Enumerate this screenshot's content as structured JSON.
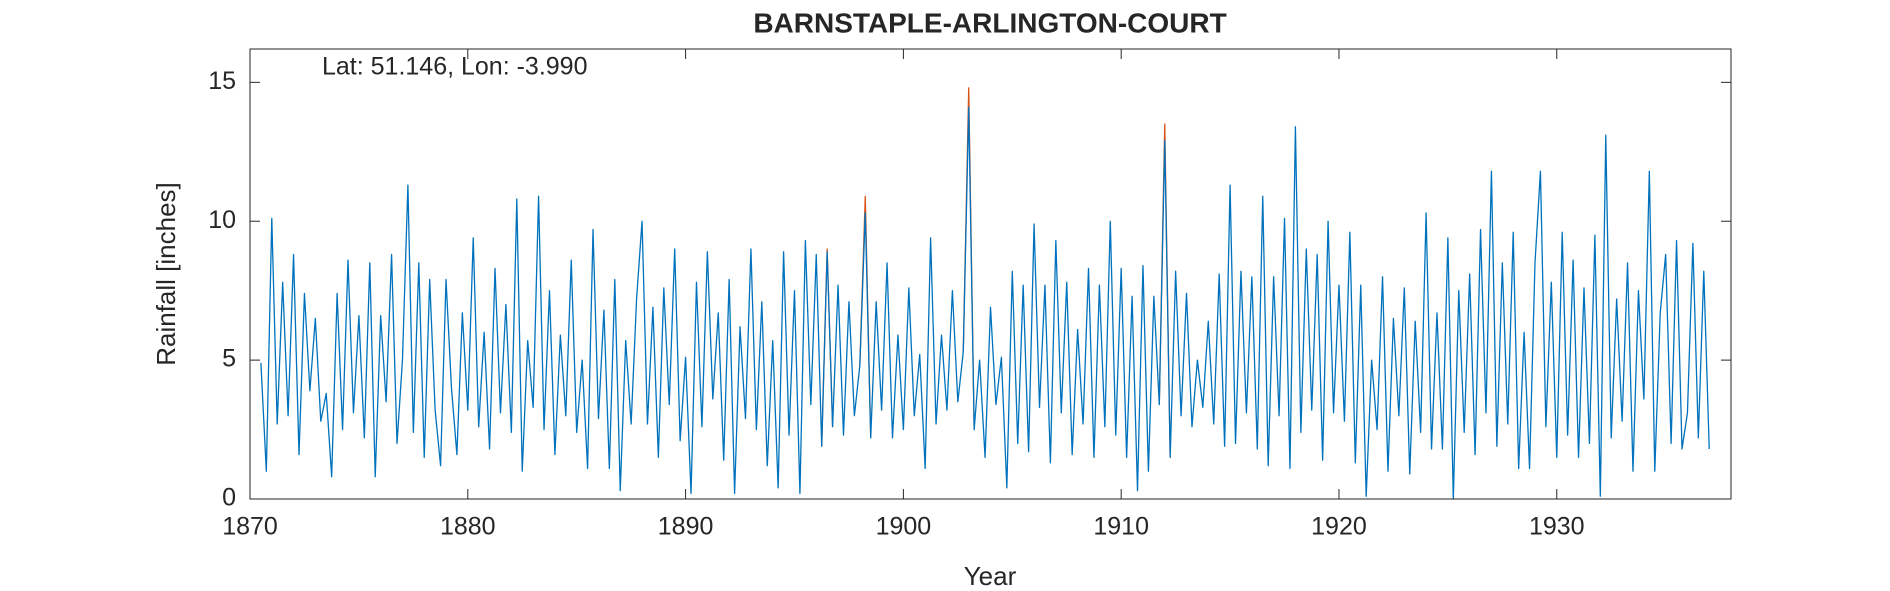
{
  "chart_data": {
    "type": "line",
    "title": "BARNSTAPLE-ARLINGTON-COURT",
    "annotation": "Lat: 51.146, Lon: -3.990",
    "x_label": "Year",
    "y_label": "Rainfall [inches]",
    "xlim": [
      1870,
      1938
    ],
    "xticks": [
      1870,
      1880,
      1890,
      1900,
      1910,
      1920,
      1930
    ],
    "ylim": [
      0,
      16.2
    ],
    "yticks": [
      0,
      5,
      10,
      15
    ],
    "series": [
      {
        "color": "#D95319",
        "x": [
          1896.25,
          1896.5,
          1896.75,
          1897,
          1898,
          1898.25,
          1898.5,
          1898.75,
          1902.75,
          1903,
          1903.25,
          1903.5,
          1911.75,
          1912,
          1912.25
        ],
        "values": [
          1.9,
          9.0,
          2.6,
          null,
          4.8,
          10.9,
          2.2,
          null,
          5.3,
          14.8,
          2.5,
          null,
          3.4,
          13.5,
          1.5
        ]
      },
      {
        "color": "#0072BD",
        "x": [
          1870.5,
          1870.75,
          1871,
          1871.25,
          1871.5,
          1871.75,
          1872,
          1872.25,
          1872.5,
          1872.75,
          1873,
          1873.25,
          1873.5,
          1873.75,
          1874,
          1874.25,
          1874.5,
          1874.75,
          1875,
          1875.25,
          1875.5,
          1875.75,
          1876,
          1876.25,
          1876.5,
          1876.75,
          1877,
          1877.25,
          1877.5,
          1877.75,
          1878,
          1878.25,
          1878.5,
          1878.75,
          1879,
          1879.25,
          1879.5,
          1879.75,
          1880,
          1880.25,
          1880.5,
          1880.75,
          1881,
          1881.25,
          1881.5,
          1881.75,
          1882,
          1882.25,
          1882.5,
          1882.75,
          1883,
          1883.25,
          1883.5,
          1883.75,
          1884,
          1884.25,
          1884.5,
          1884.75,
          1885,
          1885.25,
          1885.5,
          1885.75,
          1886,
          1886.25,
          1886.5,
          1886.75,
          1887,
          1887.25,
          1887.5,
          1887.75,
          1888,
          1888.25,
          1888.5,
          1888.75,
          1889,
          1889.25,
          1889.5,
          1889.75,
          1890,
          1890.25,
          1890.5,
          1890.75,
          1891,
          1891.25,
          1891.5,
          1891.75,
          1892,
          1892.25,
          1892.5,
          1892.75,
          1893,
          1893.25,
          1893.5,
          1893.75,
          1894,
          1894.25,
          1894.5,
          1894.75,
          1895,
          1895.25,
          1895.5,
          1895.75,
          1896,
          1896.25,
          1896.5,
          1896.75,
          1897,
          1897.25,
          1897.5,
          1897.75,
          1898,
          1898.25,
          1898.5,
          1898.75,
          1899,
          1899.25,
          1899.5,
          1899.75,
          1900,
          1900.25,
          1900.5,
          1900.75,
          1901,
          1901.25,
          1901.5,
          1901.75,
          1902,
          1902.25,
          1902.5,
          1902.75,
          1903,
          1903.25,
          1903.5,
          1903.75,
          1904,
          1904.25,
          1904.5,
          1904.75,
          1905,
          1905.25,
          1905.5,
          1905.75,
          1906,
          1906.25,
          1906.5,
          1906.75,
          1907,
          1907.25,
          1907.5,
          1907.75,
          1908,
          1908.25,
          1908.5,
          1908.75,
          1909,
          1909.25,
          1909.5,
          1909.75,
          1910,
          1910.25,
          1910.5,
          1910.75,
          1911,
          1911.25,
          1911.5,
          1911.75,
          1912,
          1912.25,
          1912.5,
          1912.75,
          1913,
          1913.25,
          1913.5,
          1913.75,
          1914,
          1914.25,
          1914.5,
          1914.75,
          1915,
          1915.25,
          1915.5,
          1915.75,
          1916,
          1916.25,
          1916.5,
          1916.75,
          1917,
          1917.25,
          1917.5,
          1917.75,
          1918,
          1918.25,
          1918.5,
          1918.75,
          1919,
          1919.25,
          1919.5,
          1919.75,
          1920,
          1920.25,
          1920.5,
          1920.75,
          1921,
          1921.25,
          1921.5,
          1921.75,
          1922,
          1922.25,
          1922.5,
          1922.75,
          1923,
          1923.25,
          1923.5,
          1923.75,
          1924,
          1924.25,
          1924.5,
          1924.75,
          1925,
          1925.25,
          1925.5,
          1925.75,
          1926,
          1926.25,
          1926.5,
          1926.75,
          1927,
          1927.25,
          1927.5,
          1927.75,
          1928,
          1928.25,
          1928.5,
          1928.75,
          1929,
          1929.25,
          1929.5,
          1929.75,
          1930,
          1930.25,
          1930.5,
          1930.75,
          1931,
          1931.25,
          1931.5,
          1931.75,
          1932,
          1932.25,
          1932.5,
          1932.75,
          1933,
          1933.25,
          1933.5,
          1933.75,
          1934,
          1934.25,
          1934.5,
          1934.75,
          1935,
          1935.25,
          1935.5,
          1935.75,
          1936,
          1936.25,
          1936.5,
          1936.75,
          1937
        ],
        "values": [
          4.9,
          1.0,
          10.1,
          2.7,
          7.8,
          3.0,
          8.8,
          1.6,
          7.4,
          3.9,
          6.5,
          2.8,
          3.8,
          0.8,
          7.4,
          2.5,
          8.6,
          3.1,
          6.6,
          2.2,
          8.5,
          0.8,
          6.6,
          3.5,
          8.8,
          2.0,
          5.0,
          11.3,
          2.4,
          8.5,
          1.5,
          7.9,
          3.2,
          1.2,
          7.9,
          4.0,
          1.6,
          6.7,
          3.2,
          9.4,
          2.6,
          6.0,
          1.8,
          8.3,
          3.1,
          7.0,
          2.4,
          10.8,
          1.0,
          5.7,
          3.3,
          10.9,
          2.5,
          7.5,
          1.6,
          5.9,
          3.0,
          8.6,
          2.4,
          5.0,
          1.1,
          9.7,
          2.9,
          6.8,
          1.1,
          7.9,
          0.3,
          5.7,
          2.7,
          7.2,
          10.0,
          2.7,
          6.9,
          1.5,
          7.6,
          3.4,
          9.0,
          2.1,
          5.1,
          0.2,
          7.8,
          2.6,
          8.9,
          3.6,
          6.7,
          1.4,
          7.9,
          0.2,
          6.2,
          2.9,
          9.0,
          2.5,
          7.1,
          1.2,
          5.7,
          0.4,
          8.9,
          2.3,
          7.5,
          0.2,
          9.3,
          3.4,
          8.8,
          1.9,
          8.9,
          2.6,
          7.7,
          2.3,
          7.1,
          3.0,
          4.8,
          10.3,
          2.2,
          7.1,
          3.2,
          8.5,
          2.2,
          5.9,
          2.5,
          7.6,
          3.0,
          5.2,
          1.1,
          9.4,
          2.7,
          5.9,
          3.2,
          7.5,
          3.5,
          5.3,
          14.1,
          2.5,
          5.0,
          1.5,
          6.9,
          3.4,
          5.1,
          0.4,
          8.2,
          2.0,
          7.7,
          1.7,
          9.9,
          3.3,
          7.7,
          1.3,
          9.3,
          3.1,
          7.8,
          1.6,
          6.1,
          2.7,
          8.3,
          1.5,
          7.7,
          2.6,
          10.0,
          2.3,
          8.3,
          1.5,
          7.3,
          0.3,
          8.4,
          1.0,
          7.3,
          3.4,
          12.9,
          1.5,
          8.2,
          3.0,
          7.4,
          2.6,
          5.0,
          3.3,
          6.4,
          2.7,
          8.1,
          1.9,
          11.3,
          2.0,
          8.2,
          3.1,
          8.0,
          1.8,
          10.9,
          1.2,
          8.0,
          3.0,
          10.1,
          1.1,
          13.4,
          2.4,
          9.0,
          3.2,
          8.8,
          1.4,
          10.0,
          3.1,
          7.7,
          2.8,
          9.6,
          1.3,
          7.7,
          0.1,
          5.0,
          2.5,
          8.0,
          1.0,
          6.5,
          3.0,
          7.6,
          0.9,
          6.4,
          2.4,
          10.3,
          1.8,
          6.7,
          1.8,
          9.4,
          0.0,
          7.5,
          2.4,
          8.1,
          1.6,
          9.7,
          3.1,
          11.8,
          1.9,
          8.5,
          2.7,
          9.6,
          1.1,
          6.0,
          1.1,
          8.5,
          11.8,
          2.6,
          7.8,
          1.5,
          9.6,
          2.3,
          8.6,
          1.5,
          7.6,
          2.0,
          9.5,
          0.1,
          13.1,
          2.2,
          7.2,
          2.8,
          8.5,
          1.0,
          7.5,
          3.6,
          11.8,
          1.0,
          6.7,
          8.8,
          2.0,
          9.3,
          1.8,
          3.1,
          9.2,
          2.2,
          8.2,
          1.8
        ]
      }
    ]
  }
}
